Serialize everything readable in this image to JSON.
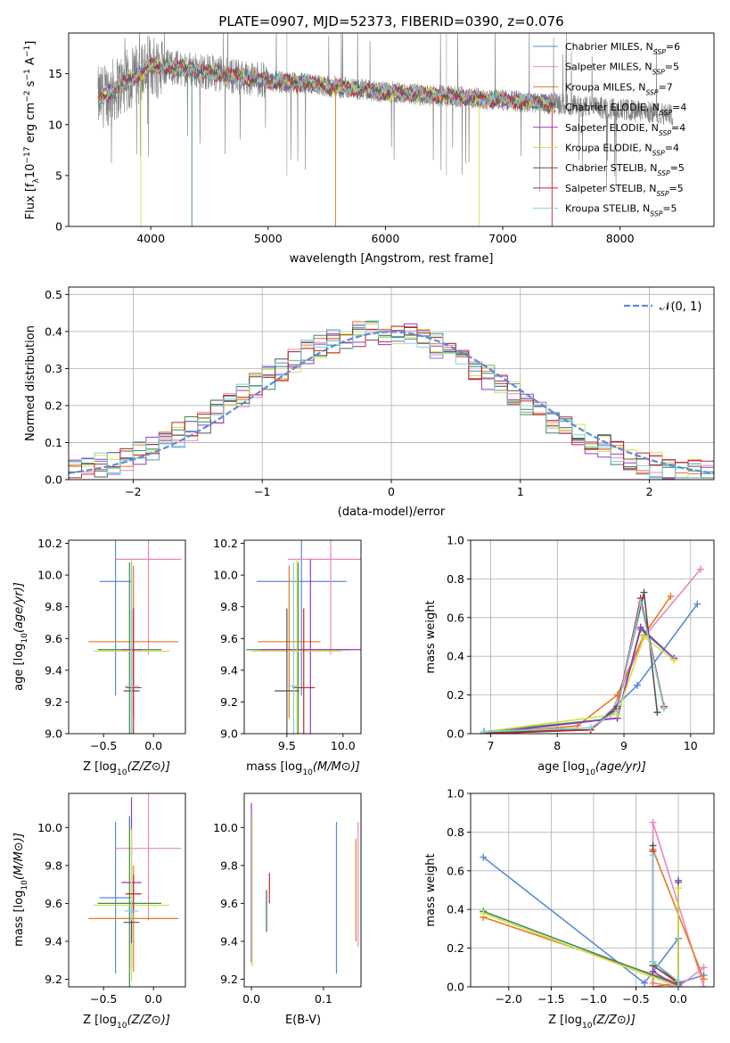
{
  "title": "PLATE=0907, MJD=52373, FIBERID=0390, z=0.076",
  "colors": {
    "Chabrier MILES": "#5b8bd5",
    "Salpeter MILES": "#e887c0",
    "Kroupa MILES": "#e87a23",
    "Chabrier ELODIE": "#3c8b5a",
    "Salpeter ELODIE": "#9a38c1",
    "Kroupa ELODIE": "#d5e045",
    "Chabrier STELIB": "#555555",
    "Salpeter STELIB": "#c1272d",
    "Kroupa STELIB": "#7fd3d8"
  },
  "legend": [
    {
      "prefix": "Chabrier MILES, N",
      "n": "6"
    },
    {
      "prefix": "Salpeter MILES, N",
      "n": "5"
    },
    {
      "prefix": "Kroupa MILES, N",
      "n": "7"
    },
    {
      "prefix": "Chabrier ELODIE, N",
      "n": "4"
    },
    {
      "prefix": "Salpeter ELODIE, N",
      "n": "4"
    },
    {
      "prefix": "Kroupa ELODIE, N",
      "n": "4"
    },
    {
      "prefix": "Chabrier STELIB, N",
      "n": "5"
    },
    {
      "prefix": "Salpeter STELIB, N",
      "n": "5"
    },
    {
      "prefix": "Kroupa STELIB, N",
      "n": "5"
    }
  ],
  "legend_sub": "SSP",
  "chart_data": [
    {
      "id": "spectrum",
      "type": "line",
      "title": "PLATE=0907, MJD=52373, FIBERID=0390, z=0.076",
      "xlabel": "wavelength [Angstrom, rest frame]",
      "ylabel": "Flux [fλ10⁻¹⁷ erg cm⁻² s⁻¹ A⁻¹]",
      "xlim": [
        3300,
        8800
      ],
      "ylim": [
        0,
        19
      ],
      "xticks": [
        4000,
        5000,
        6000,
        7000,
        8000
      ],
      "yticks": [
        0,
        5,
        10,
        15
      ],
      "data_profile": {
        "x": [
          3550,
          3700,
          3900,
          4000,
          4300,
          4700,
          5000,
          5500,
          6000,
          6500,
          7000,
          7500,
          8000,
          8450
        ],
        "y": [
          12.5,
          13.5,
          15.0,
          15.8,
          15.5,
          14.8,
          14.3,
          13.8,
          13.2,
          12.8,
          12.4,
          12.0,
          11.5,
          11.0
        ]
      },
      "models_wavelength_range": [
        3550,
        7450
      ],
      "legend_position": "upper right"
    },
    {
      "id": "residuals",
      "type": "step",
      "xlabel": "(data-model)/error",
      "ylabel": "Normed distribution",
      "xlim": [
        -2.5,
        2.5
      ],
      "ylim": [
        0,
        0.52
      ],
      "xticks": [
        -2,
        -1,
        0,
        1,
        2
      ],
      "yticks": [
        0.0,
        0.1,
        0.2,
        0.3,
        0.4,
        0.5
      ],
      "reference": {
        "name": "𝒩(0, 1)",
        "mu": 0,
        "sigma": 1
      },
      "grid": true,
      "legend_position": "upper right"
    },
    {
      "id": "age-vs-Z",
      "type": "errorbar",
      "xlabel_prefix": "Z [log",
      "xlabel_suffix": "(Z/Z⊙)]",
      "ylabel_prefix": "age  [log",
      "ylabel_suffix": "(age/yr)]",
      "xlim": [
        -0.85,
        0.32
      ],
      "ylim": [
        9.0,
        10.22
      ],
      "xticks": [
        -0.5,
        0.0
      ],
      "yticks": [
        9.0,
        9.2,
        9.4,
        9.6,
        9.8,
        10.0,
        10.2
      ],
      "series": [
        {
          "model": "Chabrier MILES",
          "x": -0.38,
          "xerr": 0.16,
          "y": 9.96,
          "yerr": 0.72
        },
        {
          "model": "Salpeter MILES",
          "x": -0.05,
          "xerr": 0.33,
          "y": 10.1,
          "yerr": 0.6
        },
        {
          "model": "Kroupa MILES",
          "x": -0.2,
          "xerr": 0.45,
          "y": 9.58,
          "yerr": 0.48
        },
        {
          "model": "Chabrier ELODIE",
          "x": -0.24,
          "xerr": 0.32,
          "y": 9.53,
          "yerr": 0.55
        },
        {
          "model": "Salpeter ELODIE",
          "x": -0.22,
          "xerr": 0.1,
          "y": 9.53,
          "yerr": 0.57
        },
        {
          "model": "Kroupa ELODIE",
          "x": -0.22,
          "xerr": 0.38,
          "y": 9.52,
          "yerr": 0.58
        },
        {
          "model": "Chabrier STELIB",
          "x": -0.22,
          "xerr": 0.08,
          "y": 9.27,
          "yerr": 0.52
        },
        {
          "model": "Salpeter STELIB",
          "x": -0.2,
          "xerr": 0.08,
          "y": 9.29,
          "yerr": 0.5
        },
        {
          "model": "Kroupa STELIB",
          "x": -0.22,
          "xerr": 0.07,
          "y": 9.3,
          "yerr": 0.78
        }
      ]
    },
    {
      "id": "age-vs-mass",
      "type": "errorbar",
      "xlabel_prefix": "mass [log",
      "xlabel_suffix": "(M/M⊙)]",
      "xlim": [
        9.12,
        10.16
      ],
      "ylim": [
        9.0,
        10.22
      ],
      "xticks": [
        9.5,
        10.0
      ],
      "yticks": [
        9.0,
        9.2,
        9.4,
        9.6,
        9.8,
        10.0,
        10.2
      ],
      "series": [
        {
          "model": "Chabrier MILES",
          "x": 9.63,
          "xerr": 0.4,
          "y": 9.96,
          "yerr": 0.72
        },
        {
          "model": "Salpeter MILES",
          "x": 9.89,
          "xerr": 0.38,
          "y": 10.1,
          "yerr": 0.6
        },
        {
          "model": "Kroupa MILES",
          "x": 9.52,
          "xerr": 0.28,
          "y": 9.58,
          "yerr": 0.48
        },
        {
          "model": "Chabrier ELODIE",
          "x": 9.6,
          "xerr": 0.46,
          "y": 9.53,
          "yerr": 0.55
        },
        {
          "model": "Salpeter ELODIE",
          "x": 9.71,
          "xerr": 0.45,
          "y": 9.53,
          "yerr": 0.57
        },
        {
          "model": "Kroupa ELODIE",
          "x": 9.59,
          "xerr": 0.4,
          "y": 9.52,
          "yerr": 0.58
        },
        {
          "model": "Chabrier STELIB",
          "x": 9.5,
          "xerr": 0.11,
          "y": 9.27,
          "yerr": 0.52
        },
        {
          "model": "Salpeter STELIB",
          "x": 9.65,
          "xerr": 0.1,
          "y": 9.29,
          "yerr": 0.5
        },
        {
          "model": "Kroupa STELIB",
          "x": 9.56,
          "xerr": 0.05,
          "y": 9.3,
          "yerr": 0.78
        }
      ]
    },
    {
      "id": "weight-vs-age",
      "type": "line",
      "xlabel_prefix": "age  [log",
      "xlabel_suffix": "(age/yr)]",
      "ylabel": "mass weight",
      "xlim": [
        6.7,
        10.35
      ],
      "ylim": [
        0,
        1.0
      ],
      "xticks": [
        7,
        8,
        9,
        10
      ],
      "yticks": [
        0.0,
        0.2,
        0.4,
        0.6,
        0.8,
        1.0
      ],
      "grid": true,
      "series": [
        {
          "model": "Chabrier MILES",
          "x": [
            6.9,
            8.5,
            9.2,
            10.1
          ],
          "y": [
            0.01,
            0.02,
            0.25,
            0.67
          ]
        },
        {
          "model": "Salpeter MILES",
          "x": [
            6.9,
            8.5,
            8.8,
            9.3,
            10.15
          ],
          "y": [
            0.01,
            0.03,
            0.1,
            0.5,
            0.85
          ]
        },
        {
          "model": "Kroupa MILES",
          "x": [
            6.9,
            8.3,
            8.9,
            9.3,
            9.7
          ],
          "y": [
            0.0,
            0.04,
            0.2,
            0.51,
            0.71
          ]
        },
        {
          "model": "Chabrier ELODIE",
          "x": [
            6.9,
            8.9,
            9.25,
            9.75
          ],
          "y": [
            0.01,
            0.08,
            0.54,
            0.39
          ]
        },
        {
          "model": "Salpeter ELODIE",
          "x": [
            6.9,
            8.9,
            9.25,
            9.75
          ],
          "y": [
            0.0,
            0.08,
            0.55,
            0.39
          ]
        },
        {
          "model": "Kroupa ELODIE",
          "x": [
            6.9,
            8.9,
            9.3,
            9.75
          ],
          "y": [
            0.01,
            0.1,
            0.5,
            0.38
          ]
        },
        {
          "model": "Chabrier STELIB",
          "x": [
            6.9,
            8.5,
            8.9,
            9.3,
            9.5
          ],
          "y": [
            0.01,
            0.02,
            0.14,
            0.73,
            0.11
          ]
        },
        {
          "model": "Salpeter STELIB",
          "x": [
            6.9,
            8.5,
            8.9,
            9.25,
            9.6
          ],
          "y": [
            0.0,
            0.02,
            0.13,
            0.7,
            0.14
          ]
        },
        {
          "model": "Kroupa STELIB",
          "x": [
            6.9,
            8.5,
            8.9,
            9.25,
            9.6
          ],
          "y": [
            0.01,
            0.03,
            0.12,
            0.68,
            0.13
          ]
        }
      ]
    },
    {
      "id": "mass-vs-Z",
      "type": "errorbar",
      "xlabel_prefix": "Z [log",
      "xlabel_suffix": "(Z/Z⊙)]",
      "ylabel_prefix": "mass [log",
      "ylabel_suffix": "(M/M⊙)]",
      "xlim": [
        -0.85,
        0.32
      ],
      "ylim": [
        9.16,
        10.18
      ],
      "xticks": [
        -0.5,
        0.0
      ],
      "yticks": [
        9.2,
        9.4,
        9.6,
        9.8,
        10.0
      ],
      "series": [
        {
          "model": "Chabrier MILES",
          "x": -0.38,
          "xerr": 0.16,
          "y": 9.63,
          "yerr": 0.4
        },
        {
          "model": "Salpeter MILES",
          "x": -0.05,
          "xerr": 0.33,
          "y": 9.89,
          "yerr": 0.38
        },
        {
          "model": "Kroupa MILES",
          "x": -0.2,
          "xerr": 0.45,
          "y": 9.52,
          "yerr": 0.28
        },
        {
          "model": "Chabrier ELODIE",
          "x": -0.24,
          "xerr": 0.32,
          "y": 9.6,
          "yerr": 0.46
        },
        {
          "model": "Salpeter ELODIE",
          "x": -0.22,
          "xerr": 0.1,
          "y": 9.71,
          "yerr": 0.45
        },
        {
          "model": "Kroupa ELODIE",
          "x": -0.22,
          "xerr": 0.38,
          "y": 9.59,
          "yerr": 0.4
        },
        {
          "model": "Chabrier STELIB",
          "x": -0.22,
          "xerr": 0.08,
          "y": 9.5,
          "yerr": 0.11
        },
        {
          "model": "Salpeter STELIB",
          "x": -0.2,
          "xerr": 0.08,
          "y": 9.65,
          "yerr": 0.1
        },
        {
          "model": "Kroupa STELIB",
          "x": -0.22,
          "xerr": 0.07,
          "y": 9.56,
          "yerr": 0.05
        }
      ]
    },
    {
      "id": "mass-vs-EBV",
      "type": "errorbar",
      "xlabel": "E(B-V)",
      "xlim": [
        -0.01,
        0.152
      ],
      "ylim": [
        9.16,
        10.18
      ],
      "xticks": [
        0.0,
        0.1
      ],
      "yticks": [
        9.2,
        9.4,
        9.6,
        9.8,
        10.0
      ],
      "series": [
        {
          "model": "Chabrier MILES",
          "x": 0.118,
          "y": 9.63,
          "yerr": 0.4
        },
        {
          "model": "Salpeter MILES",
          "x": 0.148,
          "y": 9.7,
          "yerr": 0.33
        },
        {
          "model": "Kroupa MILES",
          "x": 0.145,
          "y": 9.67,
          "yerr": 0.27
        },
        {
          "model": "Chabrier ELODIE",
          "x": 0.001,
          "y": 9.67,
          "yerr": 0.4
        },
        {
          "model": "Salpeter ELODIE",
          "x": 0.0,
          "y": 9.71,
          "yerr": 0.42
        },
        {
          "model": "Kroupa ELODIE",
          "x": 0.001,
          "y": 9.67,
          "yerr": 0.4
        },
        {
          "model": "Chabrier STELIB",
          "x": 0.021,
          "y": 9.56,
          "yerr": 0.11
        },
        {
          "model": "Salpeter STELIB",
          "x": 0.025,
          "y": 9.68,
          "yerr": 0.08
        },
        {
          "model": "Kroupa STELIB",
          "x": 0.02,
          "y": 9.56,
          "yerr": 0.07
        }
      ]
    },
    {
      "id": "weight-vs-Z",
      "type": "line",
      "xlabel_prefix": "Z [log",
      "xlabel_suffix": "(Z/Z⊙)]",
      "ylabel": "mass weight",
      "xlim": [
        -2.45,
        0.42
      ],
      "ylim": [
        0,
        1.0
      ],
      "xticks": [
        -2.0,
        -1.5,
        -1.0,
        -0.5,
        0.0
      ],
      "yticks": [
        0.0,
        0.2,
        0.4,
        0.6,
        0.8,
        1.0
      ],
      "grid": true,
      "series": [
        {
          "model": "Chabrier MILES",
          "x": [
            -2.3,
            -0.4,
            0.0,
            0.0,
            0.3
          ],
          "y": [
            0.67,
            0.02,
            0.25,
            0.02,
            0.06
          ]
        },
        {
          "model": "Salpeter MILES",
          "x": [
            0.3,
            0.0,
            -0.3,
            -0.3,
            0.3
          ],
          "y": [
            0.1,
            0.0,
            0.02,
            0.85,
            0.0
          ]
        },
        {
          "model": "Kroupa MILES",
          "x": [
            -2.3,
            0.0,
            -0.3,
            -0.3,
            0.3
          ],
          "y": [
            0.36,
            0.02,
            0.0,
            0.71,
            0.04
          ]
        },
        {
          "model": "Chabrier ELODIE",
          "x": [
            -2.3,
            0.0,
            0.0
          ],
          "y": [
            0.39,
            0.01,
            0.54
          ]
        },
        {
          "model": "Salpeter ELODIE",
          "x": [
            -0.3,
            0.0,
            0.0
          ],
          "y": [
            0.08,
            0.0,
            0.55
          ]
        },
        {
          "model": "Kroupa ELODIE",
          "x": [
            -2.3,
            0.0,
            0.0
          ],
          "y": [
            0.38,
            0.0,
            0.51
          ]
        },
        {
          "model": "Chabrier STELIB",
          "x": [
            -0.3,
            -0.3,
            0.0,
            0.0
          ],
          "y": [
            0.73,
            0.11,
            0.02,
            0.0
          ]
        },
        {
          "model": "Salpeter STELIB",
          "x": [
            -0.3,
            -0.3,
            0.0
          ],
          "y": [
            0.7,
            0.13,
            0.02
          ]
        },
        {
          "model": "Kroupa STELIB",
          "x": [
            -0.3,
            -0.3,
            0.0,
            0.0
          ],
          "y": [
            0.68,
            0.13,
            0.03,
            0.0
          ]
        }
      ]
    }
  ]
}
